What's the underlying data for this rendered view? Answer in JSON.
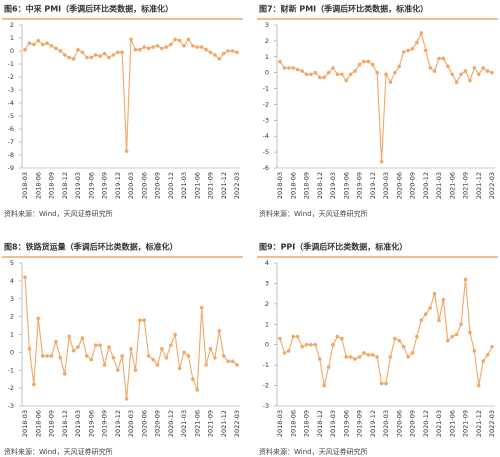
{
  "chart_data": [
    {
      "type": "line",
      "title": "图6：中采 PMI（季调后环比类数据，标准化）",
      "source": "资料来源：Wind，天风证券研究所",
      "color": "#f2a766",
      "categories": [
        "2018-03",
        null,
        null,
        "2018-06",
        null,
        null,
        "2018-09",
        null,
        null,
        "2018-12",
        null,
        null,
        "2019-03",
        null,
        null,
        "2019-06",
        null,
        null,
        "2019-09",
        null,
        null,
        "2019-12",
        null,
        null,
        "2020-03",
        null,
        null,
        "2020-06",
        null,
        null,
        "2020-09",
        null,
        null,
        "2020-12",
        null,
        null,
        "2021-03",
        null,
        null,
        "2021-06",
        null,
        null,
        "2021-09",
        null,
        null,
        "2021-12",
        null,
        null,
        "2022-03"
      ],
      "values": [
        0.1,
        0.6,
        0.5,
        0.8,
        0.5,
        0.6,
        0.4,
        0.2,
        0.0,
        -0.3,
        -0.5,
        -0.6,
        0.1,
        -0.1,
        -0.5,
        -0.5,
        -0.3,
        -0.4,
        -0.2,
        -0.5,
        -0.3,
        -0.1,
        -0.1,
        -7.7,
        0.9,
        0.1,
        0.1,
        0.3,
        0.2,
        0.3,
        0.4,
        0.2,
        0.3,
        0.5,
        0.9,
        0.8,
        0.4,
        0.9,
        0.4,
        0.3,
        0.3,
        0.1,
        -0.1,
        -0.3,
        -0.6,
        -0.2,
        0.0,
        0.0,
        -0.1
      ],
      "ylim": [
        -9,
        2
      ],
      "yticks": [
        -9,
        -8,
        -7,
        -6,
        -5,
        -4,
        -3,
        -2,
        -1,
        0,
        1,
        2
      ]
    },
    {
      "type": "line",
      "title": "图7：财新 PMI（季调后环比类数据，标准化）",
      "source": "资料来源：Wind，天风证券研究所",
      "color": "#f2a766",
      "categories": [
        "2018-03",
        null,
        null,
        "2018-06",
        null,
        null,
        "2018-09",
        null,
        null,
        "2018-12",
        null,
        null,
        "2019-03",
        null,
        null,
        "2019-06",
        null,
        null,
        "2019-09",
        null,
        null,
        "2019-12",
        null,
        null,
        "2020-03",
        null,
        null,
        "2020-06",
        null,
        null,
        "2020-09",
        null,
        null,
        "2020-12",
        null,
        null,
        "2021-03",
        null,
        null,
        "2021-06",
        null,
        null,
        "2021-09",
        null,
        null,
        "2021-12",
        null,
        null,
        "2022-03"
      ],
      "values": [
        0.7,
        0.3,
        0.3,
        0.3,
        0.2,
        0.1,
        -0.1,
        -0.1,
        0.0,
        -0.3,
        -0.3,
        0.0,
        0.3,
        -0.1,
        -0.1,
        -0.5,
        -0.1,
        0.1,
        0.5,
        0.7,
        0.7,
        0.5,
        0.0,
        -5.6,
        -0.1,
        -0.6,
        0.0,
        0.4,
        1.3,
        1.4,
        1.5,
        1.9,
        2.5,
        1.4,
        0.3,
        0.1,
        0.9,
        0.9,
        0.4,
        -0.1,
        -0.6,
        -0.1,
        0.1,
        -0.5,
        0.3,
        -0.1,
        0.3,
        0.1,
        0.0
      ],
      "ylim": [
        -6,
        3
      ],
      "yticks": [
        -6,
        -5,
        -4,
        -3,
        -2,
        -1,
        0,
        1,
        2,
        3
      ]
    },
    {
      "type": "line",
      "title": "图8：铁路货运量（季调后环比类数据，标准化）",
      "source": "资料来源：Wind，天风证券研究所",
      "color": "#f2a766",
      "categories": [
        "2018-03",
        null,
        null,
        "2018-06",
        null,
        null,
        "2018-09",
        null,
        null,
        "2018-12",
        null,
        null,
        "2019-03",
        null,
        null,
        "2019-06",
        null,
        null,
        "2019-09",
        null,
        null,
        "2019-12",
        null,
        null,
        "2020-03",
        null,
        null,
        "2020-06",
        null,
        null,
        "2020-09",
        null,
        null,
        "2020-12",
        null,
        null,
        "2021-03",
        null,
        null,
        "2021-06",
        null,
        null,
        "2021-09",
        null,
        null,
        "2021-12",
        null,
        null,
        "2022-03"
      ],
      "values": [
        4.2,
        0.2,
        -1.8,
        1.9,
        -0.2,
        -0.2,
        -0.2,
        0.6,
        -0.3,
        -1.2,
        0.9,
        0.1,
        0.3,
        0.8,
        -0.2,
        -0.4,
        0.4,
        0.4,
        -0.7,
        0.3,
        -0.3,
        -1.0,
        -0.2,
        -2.6,
        0.2,
        -1.0,
        1.8,
        1.8,
        -0.2,
        -0.4,
        -0.7,
        0.2,
        -0.3,
        0.4,
        1.0,
        -0.9,
        0.0,
        -0.2,
        -1.5,
        -2.1,
        2.5,
        -0.7,
        0.2,
        -0.3,
        1.2,
        -0.2,
        -0.5,
        -0.5,
        -0.7
      ],
      "ylim": [
        -3,
        5
      ],
      "yticks": [
        -3,
        -2,
        -1,
        0,
        1,
        2,
        3,
        4,
        5
      ]
    },
    {
      "type": "line",
      "title": "图9：PPI（季调后环比类数据，标准化）",
      "source": "资料来源：Wind，天风证券研究所",
      "color": "#f2a766",
      "categories": [
        "2018-03",
        null,
        null,
        "2018-06",
        null,
        null,
        "2018-09",
        null,
        null,
        "2018-12",
        null,
        null,
        "2019-03",
        null,
        null,
        "2019-06",
        null,
        null,
        "2019-09",
        null,
        null,
        "2019-12",
        null,
        null,
        "2020-03",
        null,
        null,
        "2020-06",
        null,
        null,
        "2020-09",
        null,
        null,
        "2020-12",
        null,
        null,
        "2021-03",
        null,
        null,
        "2021-06",
        null,
        null,
        "2021-09",
        null,
        null,
        "2021-12",
        null,
        null,
        "2022-03"
      ],
      "values": [
        0.3,
        -0.4,
        -0.3,
        0.4,
        0.4,
        -0.1,
        0.0,
        0.0,
        0.0,
        -0.7,
        -2.0,
        -1.1,
        0.0,
        0.4,
        0.3,
        -0.6,
        -0.6,
        -0.7,
        -0.6,
        -0.4,
        -0.5,
        -0.5,
        -0.6,
        -1.9,
        -1.9,
        -0.6,
        0.3,
        0.2,
        -0.1,
        -0.6,
        -0.4,
        0.4,
        1.2,
        1.5,
        1.8,
        2.5,
        1.2,
        2.2,
        0.2,
        0.4,
        0.5,
        1.0,
        3.2,
        0.6,
        -0.3,
        -2.0,
        -0.8,
        -0.5,
        -0.1
      ],
      "ylim": [
        -3,
        4
      ],
      "yticks": [
        -3,
        -2,
        -1,
        0,
        1,
        2,
        3,
        4
      ]
    }
  ]
}
